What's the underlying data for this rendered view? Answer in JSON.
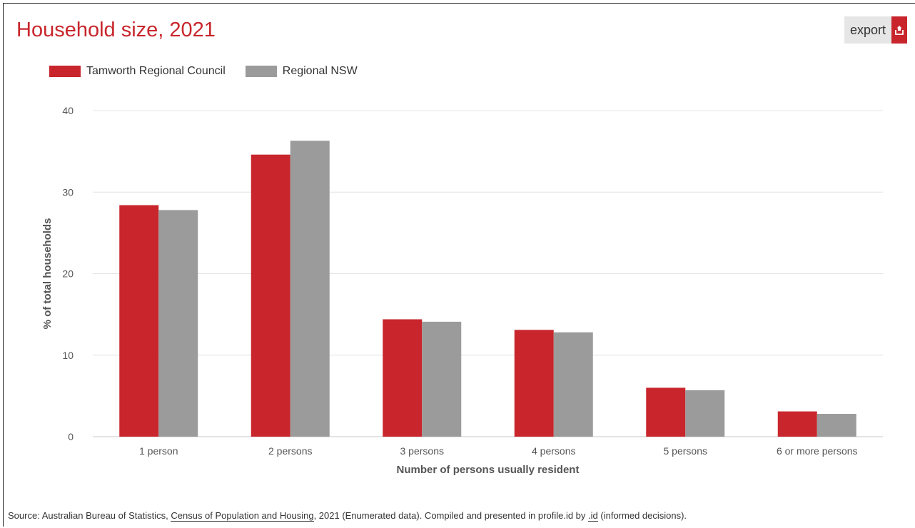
{
  "title": "Household size, 2021",
  "export": {
    "label": "export",
    "icon": "share-export-icon"
  },
  "colors": {
    "accent": "#c8262c",
    "series": [
      "#c8262c",
      "#9b9b9b"
    ],
    "grid": "#e4e4e4",
    "axis": "#c8c8c8"
  },
  "legend": [
    {
      "label": "Tamworth Regional Council"
    },
    {
      "label": "Regional NSW"
    }
  ],
  "chart_data": {
    "type": "bar",
    "title": "Household size, 2021",
    "xlabel": "Number of persons usually resident",
    "ylabel": "% of total households",
    "ylim": [
      0,
      40
    ],
    "yticks": [
      "0",
      "10",
      "20",
      "30",
      "40"
    ],
    "grid": true,
    "legend_position": "top-left",
    "categories": [
      "1 person",
      "2 persons",
      "3 persons",
      "4 persons",
      "5 persons",
      "6 or more persons"
    ],
    "series": [
      {
        "name": "Tamworth Regional Council",
        "values": [
          28.4,
          34.6,
          14.4,
          13.1,
          6.0,
          3.1
        ]
      },
      {
        "name": "Regional NSW",
        "values": [
          27.8,
          36.3,
          14.1,
          12.8,
          5.7,
          2.8
        ]
      }
    ]
  },
  "source": {
    "prefix": "Source: Australian Bureau of Statistics,",
    "link1": "Census of Population and Housing",
    "middle": ", 2021 (Enumerated data). Compiled and presented in profile.id by",
    "link2": ".id",
    "suffix": "(informed decisions)."
  }
}
